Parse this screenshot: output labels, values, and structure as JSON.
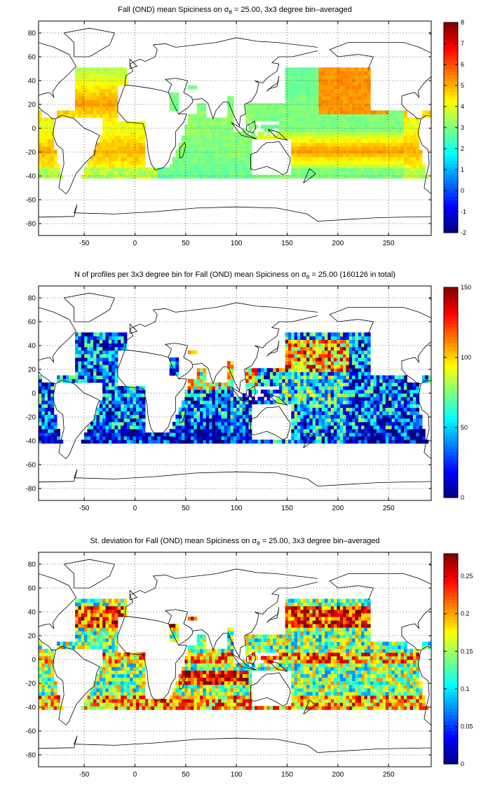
{
  "chart_data": [
    {
      "type": "heatmap",
      "title": "Fall (OND) mean Spiciness on σθ = 25.00, 3x3 degree bin–averaged",
      "title_parts": {
        "before": "Fall (OND) mean Spiciness on ",
        "sigma": "σ",
        "sub": "θ",
        "after": " = 25.00, 3x3 degree bin–averaged"
      },
      "xlim": [
        -95,
        292
      ],
      "ylim": [
        -90,
        90
      ],
      "x_ticks": [
        "-50",
        "0",
        "50",
        "100",
        "150",
        "200",
        "250"
      ],
      "x_tick_values": [
        -50,
        0,
        50,
        100,
        150,
        200,
        250
      ],
      "y_ticks": [
        "80",
        "60",
        "40",
        "20",
        "0",
        "-20",
        "-40",
        "-60",
        "-80"
      ],
      "y_tick_values": [
        80,
        60,
        40,
        20,
        0,
        -20,
        -40,
        -60,
        -80
      ],
      "colorbar": {
        "min": -2,
        "max": 8,
        "ticks": [
          "8",
          "7",
          "6",
          "5",
          "4",
          "3",
          "2",
          "1",
          "0",
          "-1",
          "-2"
        ],
        "tick_values": [
          8,
          7,
          6,
          5,
          4,
          3,
          2,
          1,
          0,
          -1,
          -2
        ]
      },
      "grid": true,
      "colormap": "jet",
      "bin_size_deg": 3
    },
    {
      "type": "heatmap",
      "title": "N of profiles per 3x3 degree bin for Fall (OND) mean Spiciness on σθ = 25.00 (160126 in total)",
      "title_parts": {
        "before": "N of profiles per 3x3 degree bin for Fall (OND) mean Spiciness on ",
        "sigma": "σ",
        "sub": "θ",
        "after": " = 25.00 (160126 in total)"
      },
      "xlim": [
        -95,
        292
      ],
      "ylim": [
        -90,
        90
      ],
      "x_ticks": [
        "-50",
        "0",
        "50",
        "100",
        "150",
        "200",
        "250"
      ],
      "x_tick_values": [
        -50,
        0,
        50,
        100,
        150,
        200,
        250
      ],
      "y_ticks": [
        "80",
        "60",
        "40",
        "20",
        "0",
        "-20",
        "-40",
        "-60",
        "-80"
      ],
      "y_tick_values": [
        80,
        60,
        40,
        20,
        0,
        -20,
        -40,
        -60,
        -80
      ],
      "colorbar": {
        "min": 0,
        "max": 150,
        "ticks": [
          "150",
          "100",
          "50",
          "0"
        ],
        "tick_values": [
          150,
          100,
          50,
          0
        ]
      },
      "grid": true,
      "colormap": "jet",
      "bin_size_deg": 3,
      "total_profiles": 160126
    },
    {
      "type": "heatmap",
      "title": "St. deviation for Fall (OND) mean Spiciness on σθ = 25.00, 3x3 degree bin–averaged",
      "title_parts": {
        "before": "St. deviation for Fall (OND) mean Spiciness on ",
        "sigma": "σ",
        "sub": "θ",
        "after": " = 25.00, 3x3 degree bin–averaged"
      },
      "xlim": [
        -95,
        292
      ],
      "ylim": [
        -90,
        90
      ],
      "x_ticks": [
        "-50",
        "0",
        "50",
        "100",
        "150",
        "200",
        "250"
      ],
      "x_tick_values": [
        -50,
        0,
        50,
        100,
        150,
        200,
        250
      ],
      "y_ticks": [
        "80",
        "60",
        "40",
        "20",
        "0",
        "-20",
        "-40",
        "-60",
        "-80"
      ],
      "y_tick_values": [
        80,
        60,
        40,
        20,
        0,
        -20,
        -40,
        -60,
        -80
      ],
      "colorbar": {
        "min": 0,
        "max": 0.28,
        "ticks": [
          "0.25",
          "0.2",
          "0.15",
          "0.1",
          "0.05",
          "0"
        ],
        "tick_values": [
          0.25,
          0.2,
          0.15,
          0.1,
          0.05,
          0
        ]
      },
      "grid": true,
      "colormap": "jet",
      "bin_size_deg": 3
    }
  ]
}
